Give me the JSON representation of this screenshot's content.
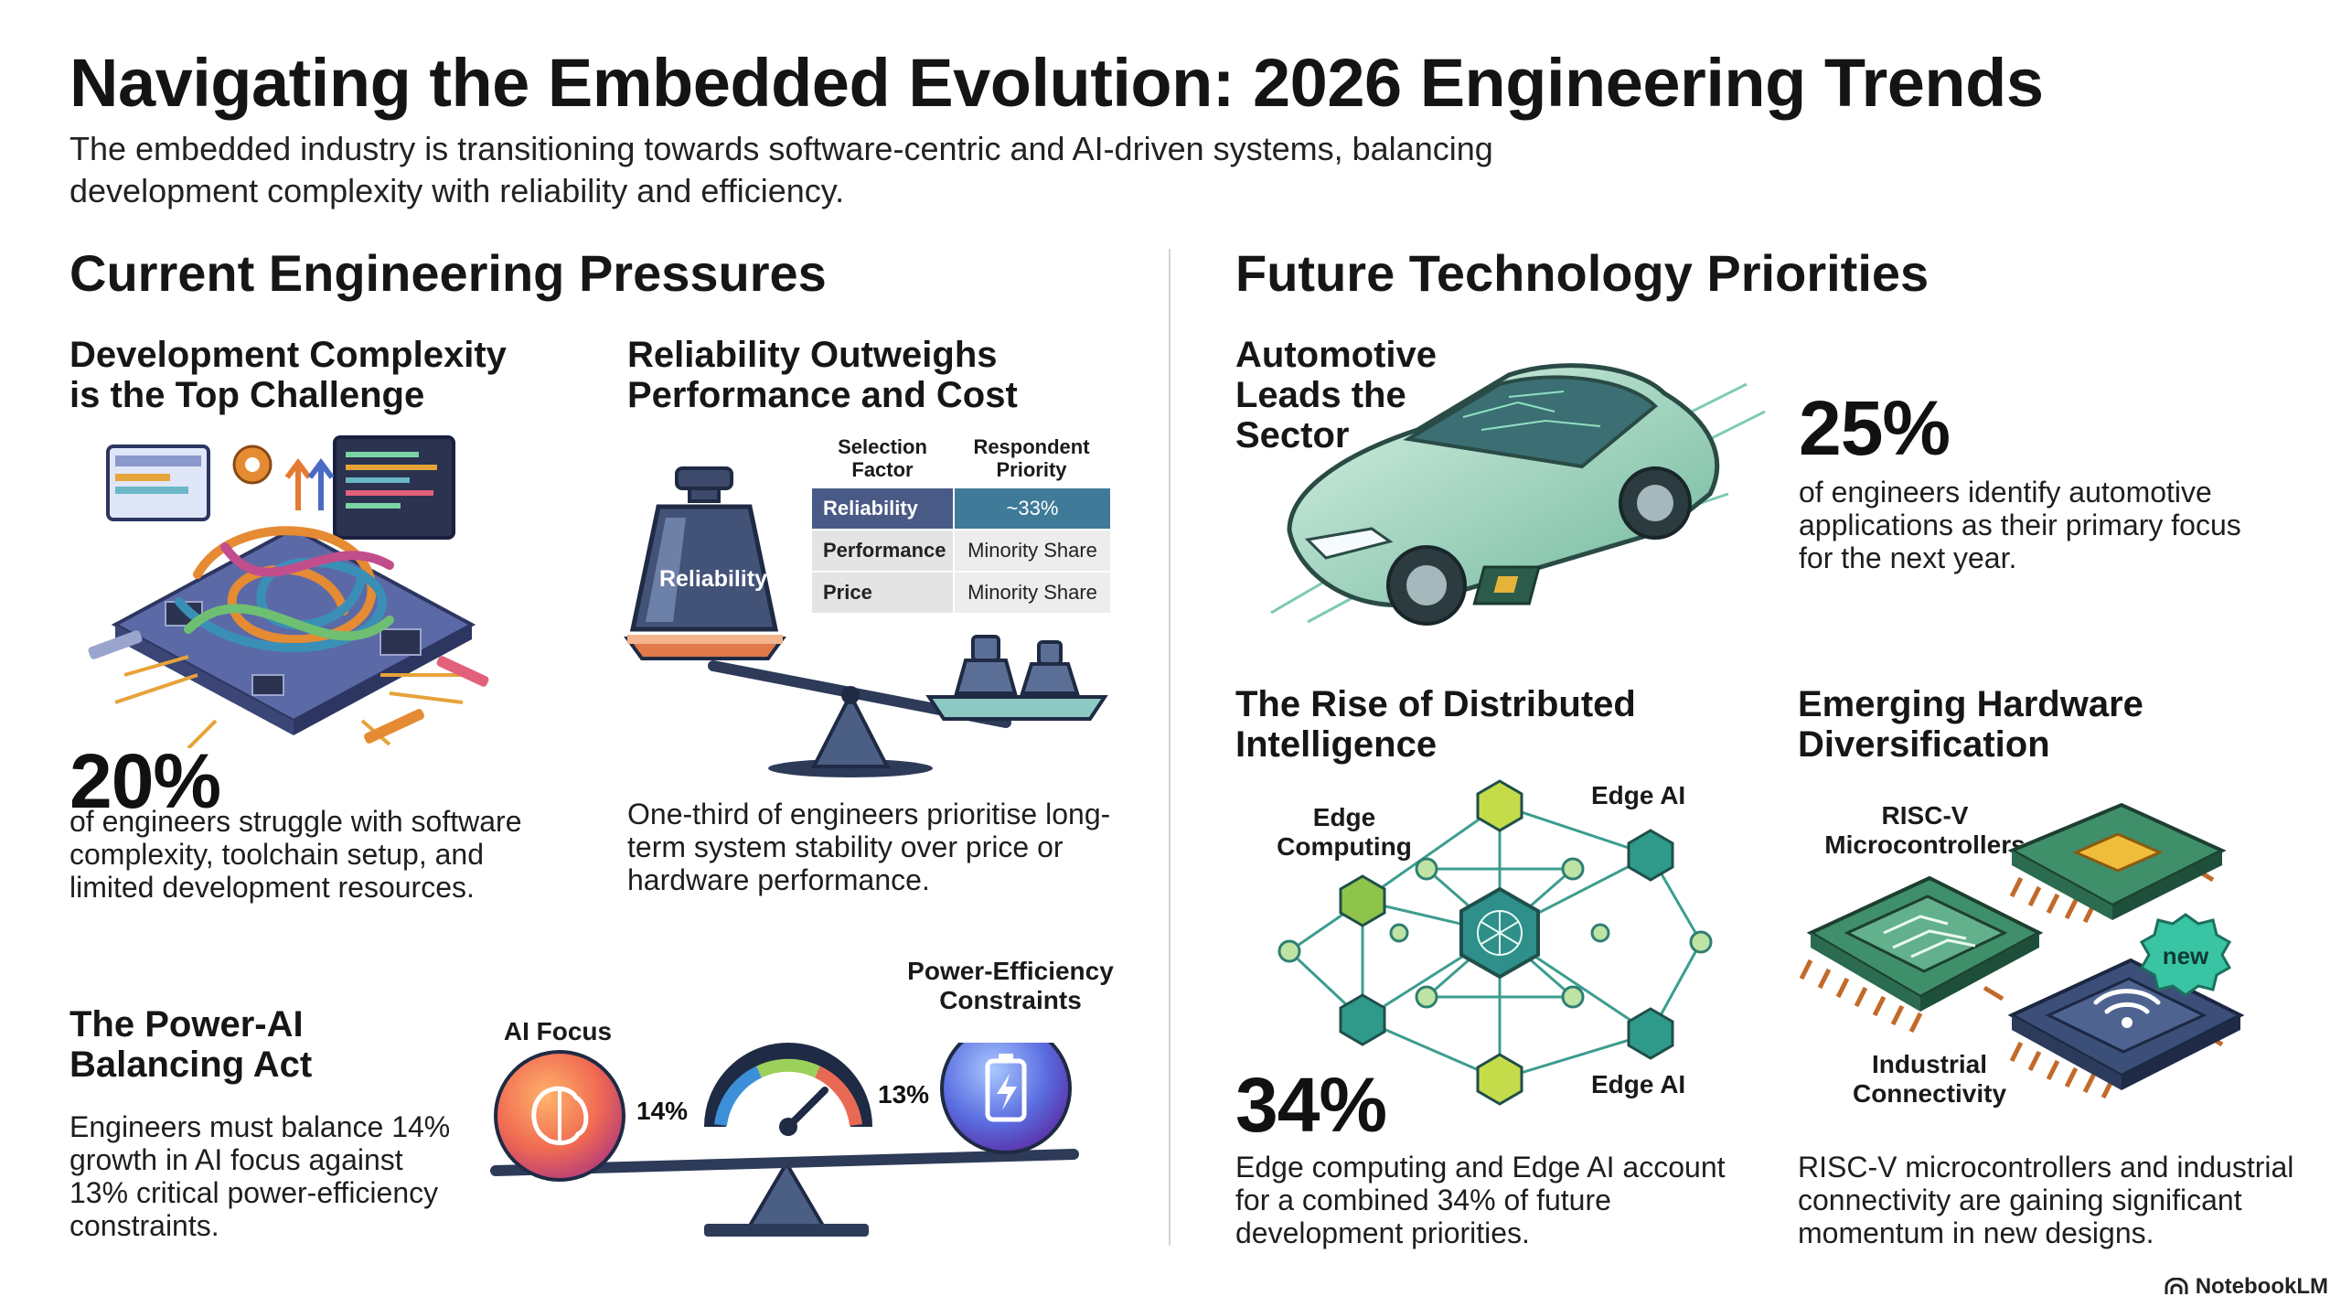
{
  "header": {
    "title": "Navigating the Embedded Evolution: 2026 Engineering Trends",
    "subtitle": "The embedded industry is transitioning towards software-centric and AI-driven systems, balancing development complexity with reliability and efficiency."
  },
  "left": {
    "heading": "Current Engineering Pressures",
    "complexity": {
      "title": "Development Complexity is the Top Challenge",
      "stat": "20%",
      "text": "of engineers struggle with software complexity, toolchain setup, and limited development resources."
    },
    "reliability": {
      "title": "Reliability Outweighs Performance and Cost",
      "weight_label": "Reliability",
      "table": {
        "col1": "Selection Factor",
        "col2": "Respondent Priority",
        "rows": [
          {
            "factor": "Reliability",
            "priority": "~33%"
          },
          {
            "factor": "Performance",
            "priority": "Minority Share"
          },
          {
            "factor": "Price",
            "priority": "Minority Share"
          }
        ]
      },
      "text": "One-third of engineers prioritise long-term system stability over price or hardware performance."
    },
    "power_ai": {
      "title": "The Power-AI Balancing Act",
      "text": "Engineers must balance 14% growth in AI focus against 13% critical power-efficiency constraints.",
      "ai_label": "AI Focus",
      "ai_value": "14%",
      "power_label": "Power-Efficiency Constraints",
      "power_value": "13%"
    }
  },
  "right": {
    "heading": "Future Technology Priorities",
    "automotive": {
      "title": "Automotive Leads the Sector",
      "stat": "25%",
      "text": "of engineers identify automotive applications as their primary focus for the next year."
    },
    "distributed": {
      "title": "The Rise of Distributed Intelligence",
      "label_edge_computing": "Edge Computing",
      "label_edge_ai_top": "Edge AI",
      "label_edge_ai_bottom": "Edge AI",
      "stat": "34%",
      "text": "Edge computing and Edge AI account for a combined 34% of future development priorities."
    },
    "hardware": {
      "title": "Emerging Hardware Diversification",
      "label_riscv": "RISC-V Microcontrollers",
      "label_industrial": "Industrial Connectivity",
      "badge": "new",
      "text": "RISC-V microcontrollers and industrial connectivity are gaining significant momentum in new designs."
    }
  },
  "footer": {
    "brand": "NotebookLM"
  },
  "colors": {
    "navy": "#4a5a86",
    "teal": "#3f7a98",
    "edge_green": "#9ccc4a",
    "edge_teal": "#2f8f8a",
    "chip_green": "#3f8f6a"
  }
}
